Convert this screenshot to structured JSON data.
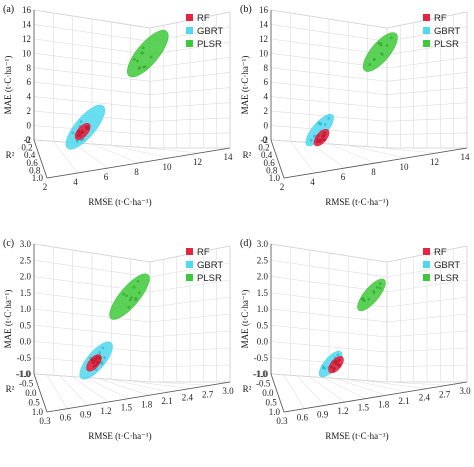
{
  "colors": {
    "RF": "#e5243f",
    "GBRT": "#4fd8ee",
    "PLSR": "#3ec93a"
  },
  "chart_data": [
    {
      "type": "scatter",
      "panel_label": "(a)",
      "xlabel": "RMSE (t·C·ha⁻¹)",
      "ylabel": "MAE (t·C·ha⁻¹)",
      "zlabel": "R²",
      "xticks": [
        "2",
        "4",
        "6",
        "8",
        "10",
        "12",
        "14"
      ],
      "yticks": [
        "-2",
        "0",
        "2",
        "4",
        "6",
        "8",
        "10",
        "12",
        "14",
        "16"
      ],
      "zticks": [
        "1.0",
        "0.8",
        "0.6",
        "0.4",
        "0.2",
        "0"
      ],
      "xlim": [
        1,
        14
      ],
      "ylim": [
        -2,
        16
      ],
      "zlim": [
        0,
        1
      ],
      "legend": [
        "RF",
        "GBRT",
        "PLSR"
      ],
      "legend_position": "top-right",
      "series": [
        {
          "name": "RF",
          "rmse": 3.6,
          "mae": 2.4,
          "r2": 0.55,
          "spread_rmse": 1.0,
          "spread_mae": 1.6
        },
        {
          "name": "GBRT",
          "rmse": 3.9,
          "mae": 2.8,
          "r2": 0.5,
          "spread_rmse": 2.8,
          "spread_mae": 5.0
        },
        {
          "name": "PLSR",
          "rmse": 10.0,
          "mae": 10.8,
          "r2": 0.1,
          "spread_rmse": 3.0,
          "spread_mae": 5.2
        }
      ]
    },
    {
      "type": "scatter",
      "panel_label": "(b)",
      "xlabel": "RMSE (t·C·ha⁻¹)",
      "ylabel": "MAE (t·C·ha⁻¹)",
      "zlabel": "R²",
      "xticks": [
        "2",
        "4",
        "6",
        "8",
        "10",
        "12",
        "14"
      ],
      "yticks": [
        "-2",
        "0",
        "2",
        "4",
        "6",
        "8",
        "10",
        "12",
        "14",
        "16"
      ],
      "zticks": [
        "1.0",
        "0.8",
        "0.6",
        "0.4",
        "0.2",
        "0"
      ],
      "xlim": [
        1,
        14
      ],
      "ylim": [
        -2,
        16
      ],
      "zlim": [
        0,
        1
      ],
      "legend": [
        "RF",
        "GBRT",
        "PLSR"
      ],
      "legend_position": "top-right",
      "series": [
        {
          "name": "RF",
          "rmse": 3.7,
          "mae": 1.8,
          "r2": 0.6,
          "spread_rmse": 0.9,
          "spread_mae": 1.4
        },
        {
          "name": "GBRT",
          "rmse": 3.6,
          "mae": 2.6,
          "r2": 0.55,
          "spread_rmse": 2.0,
          "spread_mae": 3.6
        },
        {
          "name": "PLSR",
          "rmse": 9.6,
          "mae": 11.0,
          "r2": 0.1,
          "spread_rmse": 2.6,
          "spread_mae": 4.2
        }
      ]
    },
    {
      "type": "scatter",
      "panel_label": "(c)",
      "xlabel": "RMSE (t·C·ha⁻¹)",
      "ylabel": "MAE (t·C·ha⁻¹)",
      "zlabel": "R²",
      "xticks": [
        "0.3",
        "0.6",
        "0.9",
        "1.2",
        "1.5",
        "1.8",
        "2.1",
        "2.4",
        "2.7",
        "3.0"
      ],
      "yticks": [
        "-1.0",
        "-0.5",
        "0.0",
        "0.5",
        "1.0",
        "1.5",
        "2.0",
        "2.5",
        "3.0"
      ],
      "zticks": [
        "1.0",
        "0.5",
        "0.0",
        "-0.5",
        "-1.0"
      ],
      "xlim": [
        0.1,
        3.0
      ],
      "ylim": [
        -1.0,
        3.0
      ],
      "zlim": [
        -1.0,
        1.0
      ],
      "legend": [
        "RF",
        "GBRT",
        "PLSR"
      ],
      "legend_position": "top-right",
      "series": [
        {
          "name": "RF",
          "rmse": 0.85,
          "mae": 0.2,
          "r2": 0.5,
          "spread_rmse": 0.2,
          "spread_mae": 0.35
        },
        {
          "name": "GBRT",
          "rmse": 0.9,
          "mae": 0.25,
          "r2": 0.45,
          "spread_rmse": 0.55,
          "spread_mae": 0.9
        },
        {
          "name": "PLSR",
          "rmse": 1.7,
          "mae": 1.7,
          "r2": -0.5,
          "spread_rmse": 0.6,
          "spread_mae": 1.2
        }
      ]
    },
    {
      "type": "scatter",
      "panel_label": "(d)",
      "xlabel": "RMSE (t·C·ha⁻¹)",
      "ylabel": "MAE (t·C·ha⁻¹)",
      "zlabel": "R²",
      "xticks": [
        "0.3",
        "0.6",
        "0.9",
        "1.2",
        "1.5",
        "1.8",
        "2.1",
        "2.4",
        "2.7",
        "3.0"
      ],
      "yticks": [
        "-1.0",
        "-0.5",
        "0.0",
        "0.5",
        "1.0",
        "1.5",
        "2.0",
        "2.5",
        "3.0"
      ],
      "zticks": [
        "1.0",
        "0.5",
        "0.0",
        "-0.5",
        "-1.0"
      ],
      "xlim": [
        0.1,
        3.0
      ],
      "ylim": [
        -1.0,
        3.0
      ],
      "zlim": [
        -1.0,
        1.0
      ],
      "legend": [
        "RF",
        "GBRT",
        "PLSR"
      ],
      "legend_position": "top-right",
      "series": [
        {
          "name": "RF",
          "rmse": 0.95,
          "mae": 0.15,
          "r2": 0.5,
          "spread_rmse": 0.15,
          "spread_mae": 0.3
        },
        {
          "name": "GBRT",
          "rmse": 0.85,
          "mae": 0.15,
          "r2": 0.45,
          "spread_rmse": 0.4,
          "spread_mae": 0.6
        },
        {
          "name": "PLSR",
          "rmse": 1.8,
          "mae": 1.75,
          "r2": -0.5,
          "spread_rmse": 0.45,
          "spread_mae": 0.8
        }
      ]
    }
  ]
}
